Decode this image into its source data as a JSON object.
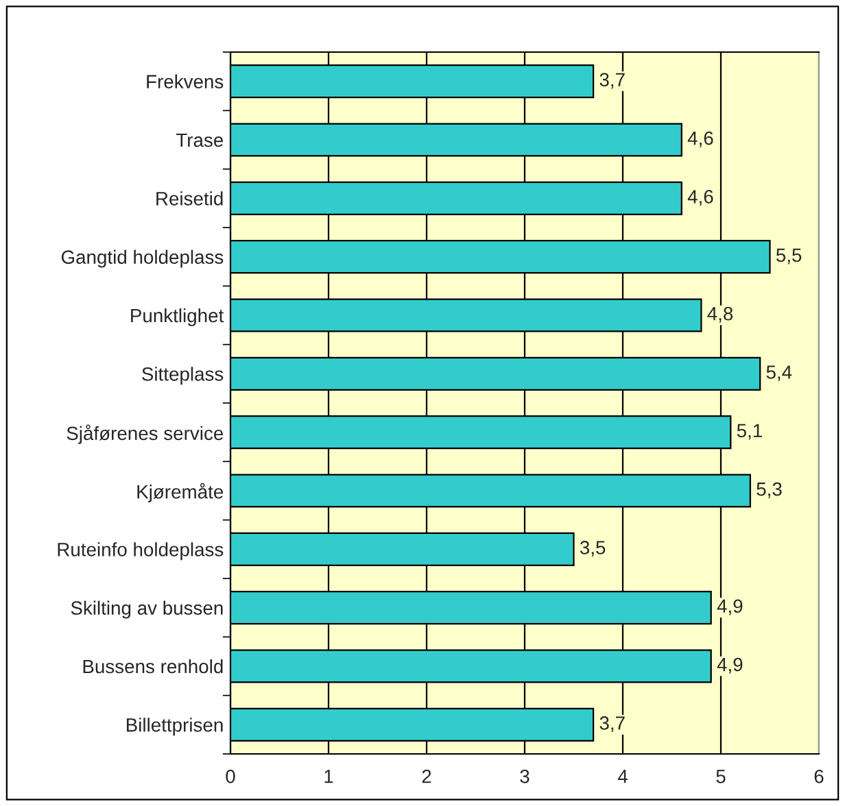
{
  "chart_data": {
    "type": "bar",
    "orientation": "horizontal",
    "categories": [
      "Frekvens",
      "Trase",
      "Reisetid",
      "Gangtid holdeplass",
      "Punktlighet",
      "Sitteplass",
      "Sjåførenes service",
      "Kjøremåte",
      "Ruteinfo holdeplass",
      "Skilting av bussen",
      "Bussens renhold",
      "Billettprisen"
    ],
    "values": [
      3.7,
      4.6,
      4.6,
      5.5,
      4.8,
      5.4,
      5.1,
      5.3,
      3.5,
      4.9,
      4.9,
      3.7
    ],
    "value_labels": [
      "3,7",
      "4,6",
      "4,6",
      "5,5",
      "4,8",
      "5,4",
      "5,1",
      "5,3",
      "3,5",
      "4,9",
      "4,9",
      "3,7"
    ],
    "color": "#33cccc",
    "xlim": [
      0,
      6
    ],
    "xticks": [
      0,
      1,
      2,
      3,
      4,
      5,
      6
    ],
    "grid": "x"
  }
}
